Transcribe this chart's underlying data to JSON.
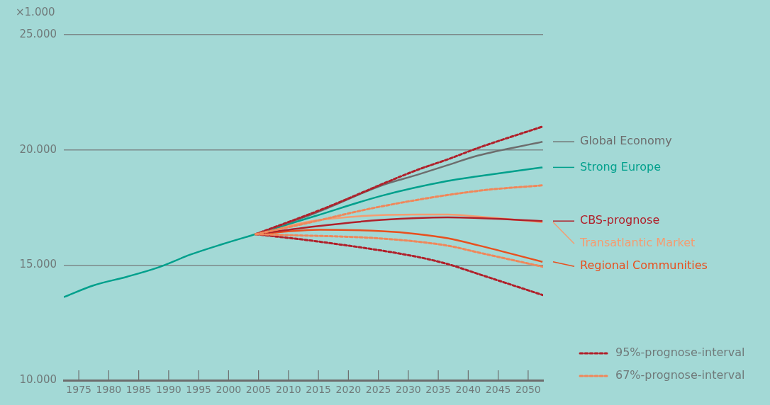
{
  "chart_data": {
    "type": "line",
    "annotations": [
      "×1.000"
    ],
    "xlim": [
      1972.5,
      2052.5
    ],
    "xticks": [
      1975,
      1980,
      1985,
      1990,
      1995,
      2000,
      2005,
      2010,
      2015,
      2020,
      2025,
      2030,
      2035,
      2040,
      2045,
      2050
    ],
    "ylim": [
      10000,
      25000
    ],
    "yticks": [
      {
        "value": 10000,
        "label": "10.000"
      },
      {
        "value": 15000,
        "label": "15.000"
      },
      {
        "value": 20000,
        "label": "20.000"
      },
      {
        "value": 25000,
        "label": "25.000"
      }
    ],
    "grid": "y",
    "legend": "bottom right",
    "marker": "none",
    "line_style": "solid",
    "series": [
      {
        "color": "#00a08c",
        "x": [
          1972.5,
          1977.5,
          1983,
          1988.2,
          1993.6,
          1999,
          2004.5
        ],
        "values": [
          13610,
          14120,
          14490,
          14890,
          15450,
          15910,
          16340
        ]
      },
      {
        "name": "95%-prognose-interval",
        "color": "#b0202a",
        "line_style": "dotted",
        "x": [
          2004.5,
          2015.3,
          2031.4,
          2036.6,
          2041.6,
          2052.4
        ],
        "values": [
          16340,
          17390,
          19120,
          19590,
          20080,
          21010
        ]
      },
      {
        "color": "#b0202a",
        "line_style": "dotted",
        "x": [
          2004.5,
          2015.3,
          2031.4,
          2036.6,
          2041.6,
          2052.4
        ],
        "values": [
          16340,
          16010,
          15360,
          15040,
          14620,
          13700
        ]
      },
      {
        "name": "67%-prognose-interval",
        "color": "#f0875a",
        "line_style": "dotted",
        "x": [
          2004.5,
          2012.4,
          2025,
          2041.6,
          2052.4
        ],
        "values": [
          16340,
          16780,
          17520,
          18220,
          18460
        ]
      },
      {
        "color": "#f0875a",
        "line_style": "dotted",
        "x": [
          2004.5,
          2009.9,
          2025.6,
          2036.6,
          2041.6,
          2052.4
        ],
        "values": [
          16340,
          16300,
          16150,
          15840,
          15550,
          14930
        ]
      },
      {
        "name": "Global Economy",
        "color": "#6d6d6d",
        "x": [
          2004.5,
          2014.5,
          2025.6,
          2031.4,
          2036.6,
          2041.6,
          2052.4
        ],
        "values": [
          16340,
          17260,
          18460,
          18910,
          19340,
          19750,
          20350
        ]
      },
      {
        "name": "Strong Europe",
        "color": "#00a08c",
        "x": [
          2004.5,
          2014.5,
          2025.6,
          2036.6,
          2041.6,
          2052.4
        ],
        "values": [
          16340,
          17130,
          18010,
          18650,
          18850,
          19240
        ]
      },
      {
        "name": "CBS-prognose",
        "color": "#b0202a",
        "x": [
          2004.5,
          2014.5,
          2025.6,
          2036.6,
          2052.4
        ],
        "values": [
          16340,
          16680,
          16960,
          17070,
          16910
        ]
      },
      {
        "name": "Transatlantic Market",
        "color": "#f59c70",
        "x": [
          2004.5,
          2014.5,
          2031.4,
          2036.6,
          2041.6,
          2052.4
        ],
        "values": [
          16340,
          16930,
          17190,
          17190,
          17110,
          16860
        ]
      },
      {
        "name": "Regional Communities",
        "color": "#e8501e",
        "x": [
          2004.5,
          2015.3,
          2025.6,
          2031.4,
          2036.6,
          2041.6,
          2052.4
        ],
        "values": [
          16340,
          16530,
          16470,
          16350,
          16160,
          15860,
          15140
        ]
      }
    ]
  }
}
